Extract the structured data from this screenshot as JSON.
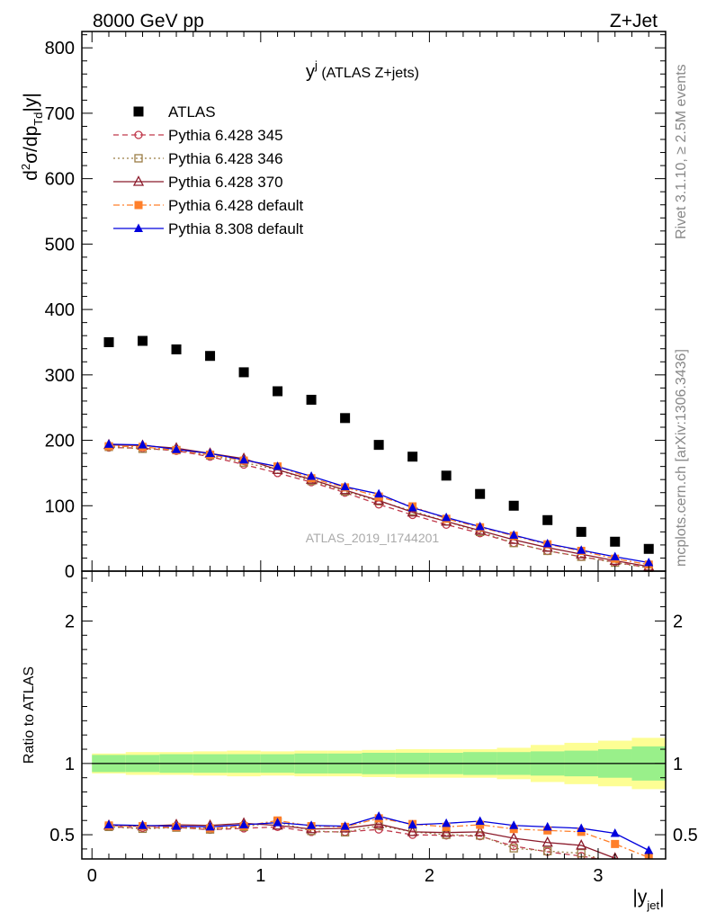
{
  "header": {
    "left": "8000 GeV pp",
    "right": "Z+Jet"
  },
  "side_texts": {
    "rivet": "Rivet 3.1.10, ≥ 2.5M events",
    "mcplots": "mcplots.cern.ch [arXiv:1306.3436]"
  },
  "chart_data": [
    {
      "type": "scatter",
      "title_main": "y",
      "title_sup": "j",
      "title_rest": " (ATLAS Z+jets)",
      "ylabel": "d²σ/dp_Td|y|",
      "watermark": "ATLAS_2019_I1744201",
      "ylim": [
        0,
        825
      ],
      "xlim": [
        -0.06,
        3.4
      ],
      "yticks": [
        0,
        100,
        200,
        300,
        400,
        500,
        600,
        700,
        800
      ],
      "legend_position": "top-left",
      "x": [
        0.1,
        0.3,
        0.5,
        0.7,
        0.9,
        1.1,
        1.3,
        1.5,
        1.7,
        1.9,
        2.1,
        2.3,
        2.5,
        2.7,
        2.9,
        3.1,
        3.3
      ],
      "series": [
        {
          "name": "ATLAS",
          "color": "#000000",
          "marker": "square-filled",
          "values": [
            350,
            352,
            339,
            329,
            304,
            275,
            262,
            234,
            193,
            175,
            146,
            118,
            100,
            78,
            60,
            45,
            34
          ]
        },
        {
          "name": "Pythia 6.428 345",
          "color": "#c0394b",
          "marker": "circle-open",
          "dash": "dashed",
          "values": [
            189,
            188,
            184,
            175,
            163,
            150,
            136,
            120,
            102,
            86,
            71,
            58,
            43,
            31,
            22,
            14,
            5
          ]
        },
        {
          "name": "Pythia 6.428 346",
          "color": "#9a7d45",
          "marker": "square-open",
          "dash": "dotted",
          "values": [
            190,
            187,
            185,
            177,
            166,
            155,
            138,
            122,
            107,
            92,
            76,
            60,
            43,
            31,
            22,
            13,
            5
          ]
        },
        {
          "name": "Pythia 6.428 370",
          "color": "#8b1a2a",
          "marker": "triangle-open",
          "dash": "solid",
          "values": [
            193,
            192,
            188,
            180,
            172,
            155,
            140,
            124,
            108,
            90,
            76,
            62,
            48,
            36,
            26,
            16,
            7
          ]
        },
        {
          "name": "Pythia 6.428 default",
          "color": "#ff7f2a",
          "marker": "square-filled",
          "dash": "dashdot",
          "values": [
            191,
            190,
            185,
            178,
            169,
            160,
            142,
            128,
            114,
            99,
            80,
            67,
            54,
            41,
            31,
            19,
            10
          ]
        },
        {
          "name": "Pythia 8.308 default",
          "color": "#0000dd",
          "marker": "triangle-filled",
          "dash": "solid",
          "values": [
            194,
            193,
            186,
            180,
            170,
            160,
            145,
            129,
            118,
            97,
            82,
            68,
            55,
            42,
            32,
            22,
            13
          ]
        }
      ]
    },
    {
      "type": "line",
      "ylabel": "Ratio to ATLAS",
      "xlabel": "|y_jet|",
      "ylim": [
        0.33,
        2.35
      ],
      "xlim": [
        -0.06,
        3.4
      ],
      "yticks": [
        0.5,
        1,
        2
      ],
      "xticks": [
        0,
        1,
        2,
        3
      ],
      "reference_line": 1,
      "bands": {
        "x_edges": [
          0,
          0.2,
          0.4,
          0.6,
          0.8,
          1.0,
          1.2,
          1.4,
          1.6,
          1.8,
          2.0,
          2.2,
          2.4,
          2.6,
          2.8,
          3.0,
          3.2,
          3.4
        ],
        "inner_halfwidth": [
          0.06,
          0.06,
          0.065,
          0.065,
          0.065,
          0.065,
          0.07,
          0.07,
          0.075,
          0.075,
          0.075,
          0.08,
          0.08,
          0.085,
          0.09,
          0.1,
          0.12
        ],
        "outer_halfwidth": [
          0.07,
          0.08,
          0.08,
          0.085,
          0.09,
          0.085,
          0.09,
          0.09,
          0.095,
          0.1,
          0.1,
          0.1,
          0.11,
          0.13,
          0.145,
          0.16,
          0.18
        ],
        "inner_color": "#99f08a",
        "outer_color": "#fdfe94"
      },
      "series": [
        {
          "name": "Pythia 6.428 345",
          "color": "#c0394b",
          "values": [
            0.555,
            0.548,
            0.552,
            0.535,
            0.545,
            0.555,
            0.52,
            0.52,
            0.537,
            0.5,
            0.495,
            0.49,
            0.42,
            0.38,
            0.35,
            0.31,
            0.26
          ]
        },
        {
          "name": "Pythia 6.428 346",
          "color": "#9a7d45",
          "values": [
            0.555,
            0.542,
            0.55,
            0.537,
            0.555,
            0.59,
            0.527,
            0.517,
            0.565,
            0.52,
            0.5,
            0.495,
            0.405,
            0.385,
            0.37,
            0.3,
            0.24
          ]
        },
        {
          "name": "Pythia 6.428 370",
          "color": "#8b1a2a",
          "values": [
            0.565,
            0.56,
            0.57,
            0.565,
            0.58,
            0.565,
            0.54,
            0.545,
            0.575,
            0.52,
            0.515,
            0.52,
            0.475,
            0.445,
            0.425,
            0.335,
            0.24
          ]
        },
        {
          "name": "Pythia 6.428 default",
          "color": "#ff7f2a",
          "values": [
            0.565,
            0.56,
            0.555,
            0.545,
            0.56,
            0.6,
            0.56,
            0.555,
            0.615,
            0.575,
            0.555,
            0.57,
            0.54,
            0.53,
            0.52,
            0.435,
            0.34
          ]
        },
        {
          "name": "Pythia 8.308 default",
          "color": "#0000dd",
          "values": [
            0.57,
            0.565,
            0.56,
            0.555,
            0.57,
            0.585,
            0.565,
            0.56,
            0.63,
            0.57,
            0.58,
            0.595,
            0.565,
            0.555,
            0.545,
            0.51,
            0.39
          ]
        }
      ]
    }
  ]
}
